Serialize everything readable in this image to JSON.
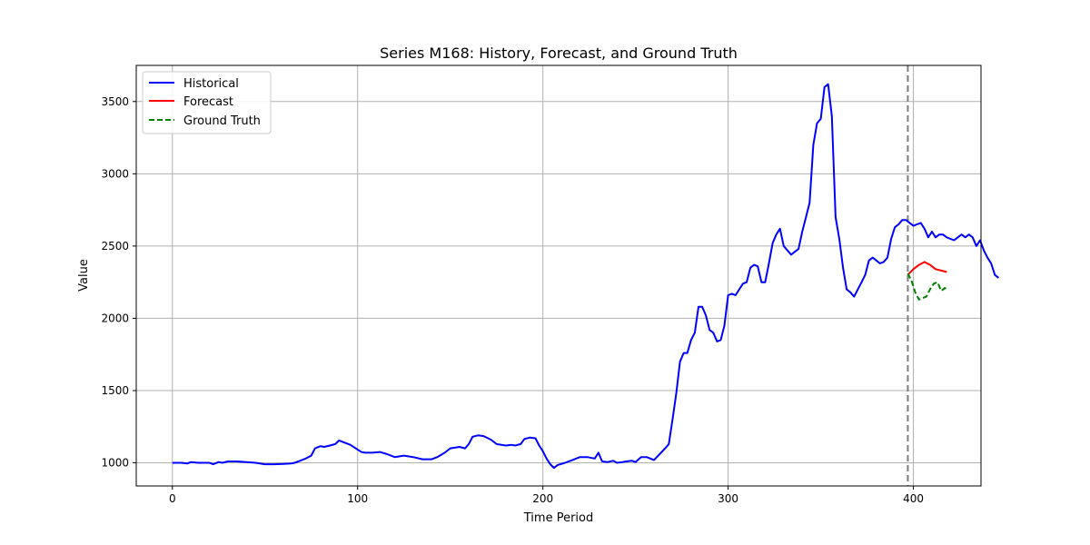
{
  "chart_data": {
    "type": "line",
    "title": "Series M168: History, Forecast, and Ground Truth",
    "xlabel": "Time Period",
    "ylabel": "Value",
    "xlim": [
      -19.5,
      436.5
    ],
    "ylim": [
      840,
      3750
    ],
    "xticks": [
      0,
      100,
      200,
      300,
      400
    ],
    "yticks": [
      1000,
      1500,
      2000,
      2500,
      3000,
      3500
    ],
    "grid": true,
    "legend_position": "top-left",
    "forecast_start_marker": 397,
    "series": [
      {
        "name": "Historical",
        "color": "#0000ff",
        "style": "solid",
        "points": [
          [
            0,
            1000
          ],
          [
            5,
            1000
          ],
          [
            8,
            995
          ],
          [
            10,
            1005
          ],
          [
            14,
            1000
          ],
          [
            18,
            1000
          ],
          [
            20,
            1000
          ],
          [
            22,
            990
          ],
          [
            25,
            1005
          ],
          [
            27,
            1000
          ],
          [
            30,
            1010
          ],
          [
            35,
            1010
          ],
          [
            40,
            1005
          ],
          [
            45,
            1000
          ],
          [
            50,
            990
          ],
          [
            55,
            990
          ],
          [
            60,
            993
          ],
          [
            64,
            995
          ],
          [
            66,
            1000
          ],
          [
            68,
            1010
          ],
          [
            72,
            1030
          ],
          [
            75,
            1050
          ],
          [
            77,
            1100
          ],
          [
            80,
            1115
          ],
          [
            82,
            1110
          ],
          [
            85,
            1120
          ],
          [
            88,
            1130
          ],
          [
            90,
            1155
          ],
          [
            93,
            1140
          ],
          [
            96,
            1125
          ],
          [
            99,
            1100
          ],
          [
            102,
            1075
          ],
          [
            104,
            1070
          ],
          [
            108,
            1070
          ],
          [
            112,
            1075
          ],
          [
            116,
            1060
          ],
          [
            120,
            1040
          ],
          [
            125,
            1050
          ],
          [
            130,
            1040
          ],
          [
            135,
            1025
          ],
          [
            140,
            1025
          ],
          [
            143,
            1040
          ],
          [
            147,
            1070
          ],
          [
            150,
            1100
          ],
          [
            155,
            1110
          ],
          [
            158,
            1100
          ],
          [
            160,
            1130
          ],
          [
            162,
            1180
          ],
          [
            165,
            1190
          ],
          [
            168,
            1185
          ],
          [
            172,
            1160
          ],
          [
            175,
            1130
          ],
          [
            180,
            1120
          ],
          [
            183,
            1125
          ],
          [
            185,
            1120
          ],
          [
            188,
            1130
          ],
          [
            190,
            1165
          ],
          [
            193,
            1175
          ],
          [
            196,
            1170
          ],
          [
            198,
            1120
          ],
          [
            200,
            1080
          ],
          [
            202,
            1030
          ],
          [
            204,
            990
          ],
          [
            206,
            965
          ],
          [
            208,
            985
          ],
          [
            212,
            1000
          ],
          [
            216,
            1020
          ],
          [
            220,
            1040
          ],
          [
            224,
            1040
          ],
          [
            228,
            1030
          ],
          [
            230,
            1070
          ],
          [
            232,
            1010
          ],
          [
            235,
            1005
          ],
          [
            238,
            1015
          ],
          [
            240,
            1000
          ],
          [
            243,
            1005
          ],
          [
            245,
            1010
          ],
          [
            248,
            1015
          ],
          [
            250,
            1005
          ],
          [
            253,
            1040
          ],
          [
            256,
            1040
          ],
          [
            260,
            1020
          ],
          [
            263,
            1060
          ],
          [
            266,
            1100
          ],
          [
            268,
            1130
          ],
          [
            270,
            1300
          ],
          [
            272,
            1480
          ],
          [
            274,
            1700
          ],
          [
            276,
            1760
          ],
          [
            278,
            1760
          ],
          [
            280,
            1850
          ],
          [
            282,
            1900
          ],
          [
            284,
            2080
          ],
          [
            286,
            2080
          ],
          [
            288,
            2020
          ],
          [
            290,
            1920
          ],
          [
            292,
            1900
          ],
          [
            294,
            1840
          ],
          [
            296,
            1850
          ],
          [
            298,
            1950
          ],
          [
            300,
            2160
          ],
          [
            302,
            2170
          ],
          [
            304,
            2160
          ],
          [
            306,
            2200
          ],
          [
            308,
            2240
          ],
          [
            310,
            2250
          ],
          [
            312,
            2350
          ],
          [
            314,
            2370
          ],
          [
            316,
            2360
          ],
          [
            318,
            2250
          ],
          [
            320,
            2250
          ],
          [
            322,
            2380
          ],
          [
            324,
            2520
          ],
          [
            326,
            2580
          ],
          [
            328,
            2620
          ],
          [
            330,
            2500
          ],
          [
            332,
            2470
          ],
          [
            334,
            2440
          ],
          [
            336,
            2460
          ],
          [
            338,
            2480
          ],
          [
            340,
            2600
          ],
          [
            342,
            2700
          ],
          [
            344,
            2800
          ],
          [
            346,
            3200
          ],
          [
            348,
            3350
          ],
          [
            350,
            3380
          ],
          [
            352,
            3600
          ],
          [
            354,
            3620
          ],
          [
            356,
            3400
          ],
          [
            358,
            2700
          ],
          [
            360,
            2550
          ],
          [
            362,
            2350
          ],
          [
            364,
            2200
          ],
          [
            366,
            2180
          ],
          [
            368,
            2150
          ],
          [
            370,
            2200
          ],
          [
            372,
            2250
          ],
          [
            374,
            2300
          ],
          [
            376,
            2400
          ],
          [
            378,
            2420
          ],
          [
            380,
            2400
          ],
          [
            382,
            2380
          ],
          [
            384,
            2390
          ],
          [
            386,
            2420
          ],
          [
            388,
            2550
          ],
          [
            390,
            2630
          ],
          [
            392,
            2650
          ],
          [
            394,
            2680
          ],
          [
            396,
            2680
          ],
          [
            398,
            2660
          ],
          [
            400,
            2640
          ],
          [
            402,
            2650
          ],
          [
            404,
            2660
          ],
          [
            406,
            2620
          ],
          [
            408,
            2560
          ],
          [
            410,
            2600
          ],
          [
            412,
            2560
          ],
          [
            414,
            2580
          ],
          [
            416,
            2580
          ],
          [
            418,
            2560
          ],
          [
            420,
            2550
          ],
          [
            422,
            2540
          ],
          [
            424,
            2560
          ],
          [
            426,
            2580
          ],
          [
            428,
            2560
          ],
          [
            430,
            2580
          ],
          [
            432,
            2560
          ],
          [
            434,
            2500
          ],
          [
            436,
            2540
          ],
          [
            438,
            2470
          ],
          [
            440,
            2420
          ],
          [
            442,
            2380
          ],
          [
            444,
            2300
          ],
          [
            446,
            2280
          ]
        ]
      },
      {
        "name": "Forecast",
        "color": "#ff0000",
        "style": "solid",
        "points": [
          [
            397,
            2300
          ],
          [
            400,
            2340
          ],
          [
            403,
            2370
          ],
          [
            406,
            2390
          ],
          [
            409,
            2370
          ],
          [
            412,
            2340
          ],
          [
            415,
            2330
          ],
          [
            418,
            2320
          ]
        ]
      },
      {
        "name": "Ground Truth",
        "color": "#008000",
        "style": "dashed",
        "points": [
          [
            397,
            2310
          ],
          [
            399,
            2260
          ],
          [
            401,
            2180
          ],
          [
            403,
            2130
          ],
          [
            405,
            2140
          ],
          [
            407,
            2150
          ],
          [
            409,
            2200
          ],
          [
            411,
            2240
          ],
          [
            413,
            2250
          ],
          [
            415,
            2190
          ],
          [
            417,
            2210
          ],
          [
            418,
            2200
          ]
        ]
      }
    ]
  }
}
